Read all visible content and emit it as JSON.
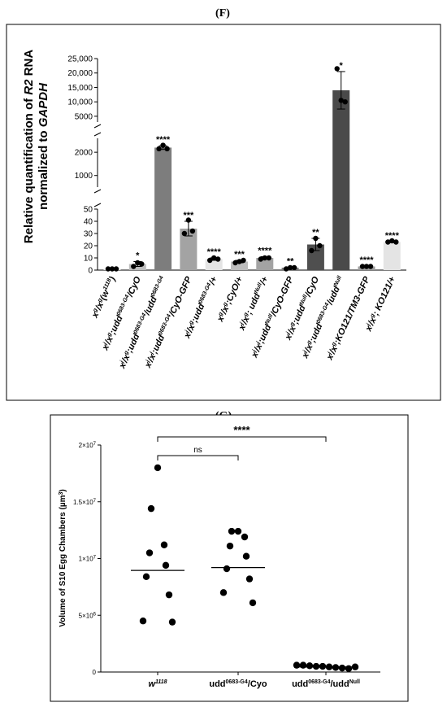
{
  "chart_data": [
    {
      "panel": "(F)",
      "type": "bar",
      "ylabel_parts": [
        "Relative quantification of ",
        "R2",
        " RNA",
        "normalized to ",
        "GAPDH"
      ],
      "y_segments": [
        {
          "range": [
            0,
            50
          ],
          "ticks": [
            0,
            10,
            20,
            30,
            40,
            50
          ]
        },
        {
          "range": [
            500,
            2600
          ],
          "ticks": [
            1000,
            2000
          ]
        },
        {
          "range": [
            3000,
            25000
          ],
          "ticks": [
            5000,
            10000,
            15000,
            20000,
            25000
          ]
        }
      ],
      "tick_labels": {
        "0": "0",
        "10": "10",
        "20": "20",
        "30": "30",
        "40": "40",
        "50": "50",
        "1000": "1000",
        "2000": "2000",
        "5000": "5000",
        "10000": "10,000",
        "15000": "15,000",
        "20000": "20,000",
        "25000": "25,000"
      },
      "categories": [
        {
          "label": [
            [
              "x",
              ""
            ],
            [
              "g",
              "sup"
            ],
            [
              "/x",
              ""
            ],
            [
              "g",
              "sup"
            ],
            [
              "(w",
              ""
            ],
            [
              "1118",
              "sup"
            ],
            [
              ")",
              ""
            ]
          ],
          "value": 1,
          "points": [
            1,
            1,
            1
          ],
          "error": 0.3,
          "color": "#e4e4e4",
          "sig": ""
        },
        {
          "label": [
            [
              "x",
              ""
            ],
            [
              "j",
              "sup"
            ],
            [
              "/x",
              ""
            ],
            [
              "g",
              "sup"
            ],
            [
              ";udd",
              ""
            ],
            [
              "0683-G4",
              "sup"
            ],
            [
              "/CyO",
              ""
            ]
          ],
          "value": 5,
          "points": [
            3,
            6,
            5
          ],
          "error": 2,
          "color": "#bdbdbd",
          "sig": "*"
        },
        {
          "label": [
            [
              "x",
              ""
            ],
            [
              "j",
              "sup"
            ],
            [
              "/x",
              ""
            ],
            [
              "g",
              "sup"
            ],
            [
              ";udd",
              ""
            ],
            [
              "0683-G4",
              "sup"
            ],
            [
              "/udd",
              ""
            ],
            [
              "0683-G4",
              "sup"
            ]
          ],
          "value": 2200,
          "points": [
            2150,
            2300,
            2150
          ],
          "error": 80,
          "color": "#7d7d7d",
          "sig": "****"
        },
        {
          "label": [
            [
              "x",
              ""
            ],
            [
              "j",
              "sup"
            ],
            [
              "/x",
              ""
            ],
            [
              "j",
              "sup"
            ],
            [
              ";udd",
              ""
            ],
            [
              "0683-G4",
              "sup"
            ],
            [
              "/CyO-GFP",
              ""
            ]
          ],
          "value": 34,
          "points": [
            30,
            41,
            32
          ],
          "error": 6,
          "color": "#a3a3a3",
          "sig": "***"
        },
        {
          "label": [
            [
              "x",
              ""
            ],
            [
              "j",
              "sup"
            ],
            [
              "/x",
              ""
            ],
            [
              "g",
              "sup"
            ],
            [
              ";udd",
              ""
            ],
            [
              "0683-G4",
              "sup"
            ],
            [
              "/+",
              ""
            ]
          ],
          "value": 9,
          "points": [
            8,
            10,
            9
          ],
          "error": 1,
          "color": "#e4e4e4",
          "sig": "****"
        },
        {
          "label": [
            [
              "x",
              ""
            ],
            [
              "g",
              "sup"
            ],
            [
              "/x",
              ""
            ],
            [
              "g",
              "sup"
            ],
            [
              ";CyO/+",
              ""
            ]
          ],
          "value": 7,
          "points": [
            6,
            7,
            8
          ],
          "error": 1,
          "color": "#bdbdbd",
          "sig": "***"
        },
        {
          "label": [
            [
              "x",
              ""
            ],
            [
              "j",
              "sup"
            ],
            [
              "/x",
              ""
            ],
            [
              "g",
              "sup"
            ],
            [
              "; udd",
              ""
            ],
            [
              "Null",
              "sup"
            ],
            [
              "/+",
              ""
            ]
          ],
          "value": 10,
          "points": [
            9,
            10,
            10
          ],
          "error": 1,
          "color": "#a3a3a3",
          "sig": "****"
        },
        {
          "label": [
            [
              "x",
              ""
            ],
            [
              "j",
              "sup"
            ],
            [
              "/x",
              ""
            ],
            [
              "j",
              "sup"
            ],
            [
              ";udd",
              ""
            ],
            [
              "Null",
              "sup"
            ],
            [
              "/CyO-GFP",
              ""
            ]
          ],
          "value": 2,
          "points": [
            1,
            2,
            2
          ],
          "error": 0.5,
          "color": "#7d7d7d",
          "sig": "**"
        },
        {
          "label": [
            [
              "x",
              ""
            ],
            [
              "j",
              "sup"
            ],
            [
              "/x",
              ""
            ],
            [
              "g",
              "sup"
            ],
            [
              ";udd",
              ""
            ],
            [
              "Null",
              "sup"
            ],
            [
              "/CyO",
              ""
            ]
          ],
          "value": 21,
          "points": [
            16,
            26,
            20
          ],
          "error": 5,
          "color": "#4f4f4f",
          "sig": "**"
        },
        {
          "label": [
            [
              "x",
              ""
            ],
            [
              "j",
              "sup"
            ],
            [
              "/x",
              ""
            ],
            [
              "g",
              "sup"
            ],
            [
              ";udd",
              ""
            ],
            [
              "0683-G4",
              "sup"
            ],
            [
              "/udd",
              ""
            ],
            [
              "Null",
              "sup"
            ]
          ],
          "value": 14000,
          "points": [
            21500,
            10500,
            10000
          ],
          "error": 6500,
          "color": "#4a4a4a",
          "sig": "*"
        },
        {
          "label": [
            [
              "x",
              ""
            ],
            [
              "j",
              "sup"
            ],
            [
              "/x",
              ""
            ],
            [
              "g",
              "sup"
            ],
            [
              ";KO121/TM3-GFP",
              ""
            ]
          ],
          "value": 3,
          "points": [
            3,
            3,
            3
          ],
          "error": 0.3,
          "color": "#9c9c9c",
          "sig": "****"
        },
        {
          "label": [
            [
              "x",
              ""
            ],
            [
              "j",
              "sup"
            ],
            [
              "/x",
              ""
            ],
            [
              "g",
              "sup"
            ],
            [
              "; KO121/+",
              ""
            ]
          ],
          "value": 23,
          "points": [
            23,
            24,
            23
          ],
          "error": 0.5,
          "color": "#e4e4e4",
          "sig": "****"
        }
      ]
    },
    {
      "panel": "(G)",
      "type": "scatter",
      "ylabel_parts": [
        "Volume of S10 Egg Chambers (µm",
        "3",
        ")"
      ],
      "ylim": [
        0,
        20000000
      ],
      "yticks": [
        {
          "v": 0,
          "base": "0",
          "exp": ""
        },
        {
          "v": 5000000,
          "base": "5×10",
          "exp": "6"
        },
        {
          "v": 10000000,
          "base": "1×10",
          "exp": "7"
        },
        {
          "v": 15000000,
          "base": "1.5×10",
          "exp": "7"
        },
        {
          "v": 20000000,
          "base": "2×10",
          "exp": "7"
        }
      ],
      "groups": [
        {
          "label": [
            [
              "w",
              ""
            ],
            [
              "1118",
              "sup"
            ]
          ],
          "italic": true,
          "mean": 8950000,
          "values": [
            18000000,
            14400000,
            11200000,
            10500000,
            9400000,
            8400000,
            6800000,
            4500000,
            4400000
          ]
        },
        {
          "label": [
            [
              "udd",
              ""
            ],
            [
              "0683-G4",
              "sup"
            ],
            [
              "/Cyo",
              ""
            ]
          ],
          "italic": false,
          "mean": 9200000,
          "values": [
            12400000,
            12400000,
            11900000,
            11100000,
            10200000,
            9100000,
            8200000,
            7000000,
            6100000
          ]
        },
        {
          "label": [
            [
              "udd",
              ""
            ],
            [
              "0683-G4",
              "sup"
            ],
            [
              "/udd",
              ""
            ],
            [
              "Null",
              "sup"
            ]
          ],
          "italic": false,
          "mean": 450000,
          "values": [
            600000,
            600000,
            550000,
            500000,
            500000,
            450000,
            400000,
            350000,
            300000,
            450000
          ]
        }
      ],
      "comparisons": [
        {
          "from": 0,
          "to": 1,
          "label": "ns"
        },
        {
          "from": 0,
          "to": 2,
          "label": "****"
        }
      ]
    }
  ]
}
